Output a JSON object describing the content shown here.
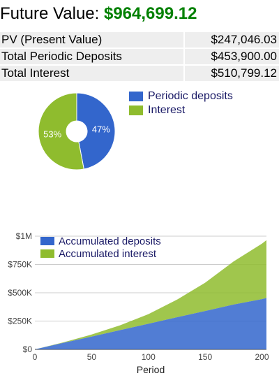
{
  "summary": {
    "future_value_label": "Future Value:",
    "future_value": "$964,699.12",
    "rows": [
      {
        "label": "PV (Present Value)",
        "value": "$247,046.03"
      },
      {
        "label": "Total Periodic Deposits",
        "value": "$453,900.00"
      },
      {
        "label": "Total Interest",
        "value": "$510,799.12"
      }
    ]
  },
  "colors": {
    "deposits": "#3366cc",
    "interest": "#8fbc2e",
    "fv_value": "#008000",
    "row_background": "#eeeeee"
  },
  "pie_legend": {
    "deposits_label": "Periodic deposits",
    "interest_label": "Interest"
  },
  "chart_data": [
    {
      "type": "pie",
      "style": "donut",
      "legend_position": "right",
      "slices": [
        {
          "name": "Periodic deposits",
          "value": 47,
          "label": "47%"
        },
        {
          "name": "Interest",
          "value": 53,
          "label": "53%"
        }
      ]
    },
    {
      "type": "area",
      "stacked": true,
      "xlabel": "Period",
      "ylabel": "",
      "xlim": [
        0,
        204
      ],
      "ylim": [
        0,
        1000000
      ],
      "x_ticks": [
        "0",
        "50",
        "100",
        "150",
        "200"
      ],
      "x_tick_values": [
        0,
        50,
        100,
        150,
        200
      ],
      "y_ticks": [
        "$0",
        "$250K",
        "$500K",
        "$750K",
        "$1M"
      ],
      "y_tick_values": [
        0,
        250000,
        500000,
        750000,
        1000000
      ],
      "grid": true,
      "legend_position": "top-left",
      "x": [
        0,
        25,
        50,
        75,
        100,
        125,
        150,
        175,
        200,
        204
      ],
      "series": [
        {
          "name": "Accumulated deposits",
          "values": [
            0,
            57000,
            113000,
            170000,
            226000,
            283000,
            339000,
            396000,
            444000,
            453900
          ]
        },
        {
          "name": "Accumulated interest",
          "values": [
            0,
            5000,
            18000,
            42000,
            85000,
            155000,
            250000,
            380000,
            490000,
            510799
          ]
        }
      ]
    }
  ]
}
